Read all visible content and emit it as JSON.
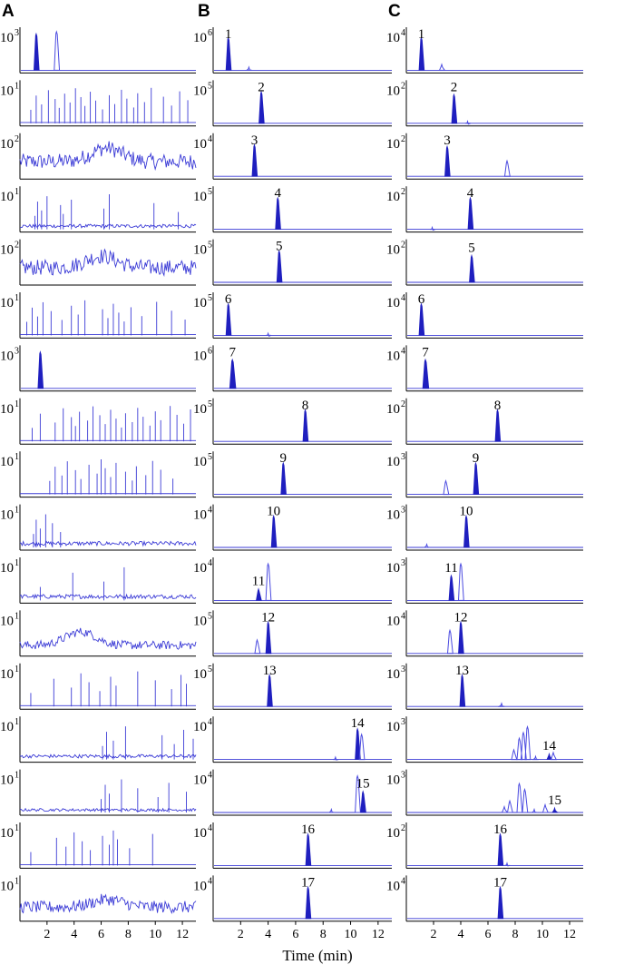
{
  "figure": {
    "panel_letters": [
      "A",
      "B",
      "C"
    ],
    "x_axis_title": "Time (min)",
    "x_ticks": [
      "2",
      "4",
      "6",
      "8",
      "10",
      "12"
    ]
  },
  "chart_data": [
    {
      "panel": "A",
      "type": "line",
      "title": "",
      "xlabel": "",
      "ylabel": "",
      "xlim": [
        0,
        13
      ],
      "x_ticks": [
        2,
        4,
        6,
        8,
        10,
        12
      ],
      "rows": [
        {
          "row": 1,
          "y_scale_exp": 3,
          "style": "peaks",
          "peaks": [
            {
              "t": 1.2,
              "h": 0.95,
              "w": 0.12,
              "filled": true
            },
            {
              "t": 2.7,
              "h": 1.0,
              "w": 0.12,
              "filled": false
            }
          ]
        },
        {
          "row": 2,
          "y_scale_exp": 1,
          "style": "spikes",
          "spikes": [
            0.8,
            1.2,
            1.6,
            2.1,
            2.6,
            2.9,
            3.3,
            3.7,
            4.1,
            4.5,
            4.8,
            5.2,
            5.6,
            6.1,
            6.6,
            7.0,
            7.5,
            7.9,
            8.4,
            8.7,
            9.2,
            9.7,
            10.6,
            11.2,
            11.8,
            12.4
          ]
        },
        {
          "row": 3,
          "y_scale_exp": 2,
          "style": "noise",
          "level": 0.45,
          "bump": {
            "t": 6.4,
            "h": 0.35
          }
        },
        {
          "row": 4,
          "y_scale_exp": 1,
          "style": "noise-spikes",
          "level": 0.1,
          "spikes": [
            1.1,
            1.3,
            1.6,
            2.0,
            3.0,
            3.2,
            3.8,
            6.2,
            6.6,
            9.9,
            11.7
          ]
        },
        {
          "row": 5,
          "y_scale_exp": 2,
          "style": "noise",
          "level": 0.45,
          "bump": {
            "t": 6.0,
            "h": 0.3
          }
        },
        {
          "row": 6,
          "y_scale_exp": 1,
          "style": "spikes",
          "spikes": [
            0.5,
            0.9,
            1.3,
            1.7,
            2.3,
            3.1,
            3.8,
            4.3,
            4.8,
            6.1,
            6.5,
            6.9,
            7.3,
            7.7,
            8.2,
            9.0,
            10.1,
            11.2,
            12.2
          ]
        },
        {
          "row": 7,
          "y_scale_exp": 3,
          "style": "peaks",
          "peaks": [
            {
              "t": 1.5,
              "h": 0.95,
              "w": 0.14,
              "filled": true
            }
          ]
        },
        {
          "row": 8,
          "y_scale_exp": 1,
          "style": "spikes",
          "spikes": [
            0.9,
            1.5,
            2.6,
            3.2,
            3.8,
            4.1,
            4.4,
            5.0,
            5.4,
            5.9,
            6.3,
            6.7,
            7.1,
            7.5,
            7.8,
            8.3,
            8.7,
            9.1,
            9.6,
            10.0,
            10.4,
            11.1,
            11.6,
            12.1,
            12.6
          ]
        },
        {
          "row": 9,
          "y_scale_exp": 1,
          "style": "spikes",
          "spikes": [
            2.2,
            2.6,
            3.1,
            3.5,
            4.1,
            4.5,
            5.1,
            5.7,
            6.0,
            6.3,
            6.7,
            7.1,
            7.8,
            8.3,
            8.6,
            9.3,
            9.8,
            10.4,
            11.3
          ]
        },
        {
          "row": 10,
          "y_scale_exp": 1,
          "style": "noise-spikes",
          "level": 0.12,
          "spikes": [
            1.0,
            1.2,
            1.5,
            1.9,
            2.4,
            3.0
          ]
        },
        {
          "row": 11,
          "y_scale_exp": 1,
          "style": "noise-spikes",
          "level": 0.12,
          "spikes": [
            1.5,
            3.9,
            6.2,
            7.7
          ]
        },
        {
          "row": 12,
          "y_scale_exp": 1,
          "style": "noise",
          "level": 0.25,
          "bump": {
            "t": 4.5,
            "h": 0.35
          }
        },
        {
          "row": 13,
          "y_scale_exp": 1,
          "style": "spikes",
          "spikes": [
            0.8,
            2.5,
            3.8,
            4.5,
            5.1,
            5.9,
            6.7,
            7.1,
            8.7,
            10.0,
            11.2,
            11.9,
            12.3
          ]
        },
        {
          "row": 14,
          "y_scale_exp": 1,
          "style": "noise-spikes",
          "level": 0.1,
          "spikes": [
            6.1,
            6.4,
            6.9,
            7.8,
            10.5,
            11.4,
            12.1,
            12.8
          ]
        },
        {
          "row": 15,
          "y_scale_exp": 1,
          "style": "noise-spikes",
          "level": 0.08,
          "spikes": [
            6.0,
            6.3,
            6.6,
            7.5,
            8.7,
            10.2,
            11.0,
            12.3
          ]
        },
        {
          "row": 16,
          "y_scale_exp": 1,
          "style": "spikes",
          "spikes": [
            0.8,
            2.7,
            3.4,
            4.0,
            4.6,
            5.2,
            6.1,
            6.6,
            6.9,
            7.2,
            8.1,
            9.8
          ]
        },
        {
          "row": 17,
          "y_scale_exp": 1,
          "style": "noise",
          "level": 0.35,
          "bump": {
            "t": 6.5,
            "h": 0.2
          }
        }
      ]
    },
    {
      "panel": "B",
      "type": "line",
      "title": "",
      "xlabel": "Time (min)",
      "ylabel": "",
      "xlim": [
        0,
        13
      ],
      "x_ticks": [
        2,
        4,
        6,
        8,
        10,
        12
      ],
      "rows": [
        {
          "row": 1,
          "label": "1",
          "y_scale_exp": 6,
          "peaks": [
            {
              "t": 1.1,
              "h": 0.85,
              "w": 0.12,
              "filled": true
            },
            {
              "t": 2.6,
              "h": 0.08,
              "w": 0.1,
              "filled": false
            }
          ]
        },
        {
          "row": 2,
          "label": "2",
          "y_scale_exp": 5,
          "peaks": [
            {
              "t": 3.5,
              "h": 0.82,
              "w": 0.06,
              "filled": true
            }
          ]
        },
        {
          "row": 3,
          "label": "3",
          "y_scale_exp": 4,
          "peaks": [
            {
              "t": 3.0,
              "h": 0.82,
              "w": 0.06,
              "filled": true
            }
          ]
        },
        {
          "row": 4,
          "label": "4",
          "y_scale_exp": 5,
          "peaks": [
            {
              "t": 4.7,
              "h": 0.82,
              "w": 0.07,
              "filled": true
            }
          ]
        },
        {
          "row": 5,
          "label": "5",
          "y_scale_exp": 5,
          "peaks": [
            {
              "t": 4.8,
              "h": 0.82,
              "w": 0.07,
              "filled": true
            }
          ]
        },
        {
          "row": 6,
          "label": "6",
          "y_scale_exp": 5,
          "peaks": [
            {
              "t": 1.1,
              "h": 0.82,
              "w": 0.08,
              "filled": true
            },
            {
              "t": 4.0,
              "h": 0.05,
              "w": 0.08,
              "filled": false
            }
          ]
        },
        {
          "row": 7,
          "label": "7",
          "y_scale_exp": 6,
          "peaks": [
            {
              "t": 1.4,
              "h": 0.75,
              "w": 0.16,
              "filled": true
            }
          ]
        },
        {
          "row": 8,
          "label": "8",
          "y_scale_exp": 5,
          "peaks": [
            {
              "t": 6.7,
              "h": 0.82,
              "w": 0.07,
              "filled": true
            }
          ]
        },
        {
          "row": 9,
          "label": "9",
          "y_scale_exp": 5,
          "peaks": [
            {
              "t": 5.1,
              "h": 0.82,
              "w": 0.07,
              "filled": true
            }
          ]
        },
        {
          "row": 10,
          "label": "10",
          "y_scale_exp": 4,
          "peaks": [
            {
              "t": 4.4,
              "h": 0.82,
              "w": 0.07,
              "filled": true
            }
          ]
        },
        {
          "row": 11,
          "label": "11",
          "y_scale_exp": 4,
          "peaks": [
            {
              "t": 3.3,
              "h": 0.3,
              "w": 0.06,
              "filled": true
            },
            {
              "t": 4.0,
              "h": 0.95,
              "w": 0.07,
              "filled": false
            }
          ]
        },
        {
          "row": 12,
          "label": "12",
          "y_scale_exp": 5,
          "peaks": [
            {
              "t": 3.2,
              "h": 0.35,
              "w": 0.06,
              "filled": false
            },
            {
              "t": 4.0,
              "h": 0.82,
              "w": 0.07,
              "filled": true
            }
          ]
        },
        {
          "row": 13,
          "label": "13",
          "y_scale_exp": 5,
          "peaks": [
            {
              "t": 4.1,
              "h": 0.82,
              "w": 0.07,
              "filled": true
            }
          ]
        },
        {
          "row": 14,
          "label": "14",
          "y_scale_exp": 4,
          "peaks": [
            {
              "t": 8.9,
              "h": 0.06,
              "w": 0.1,
              "filled": false
            },
            {
              "t": 10.5,
              "h": 0.8,
              "w": 0.1,
              "filled": true
            },
            {
              "t": 10.8,
              "h": 0.65,
              "w": 0.1,
              "filled": false
            }
          ]
        },
        {
          "row": 15,
          "label": "15",
          "y_scale_exp": 4,
          "peaks": [
            {
              "t": 8.6,
              "h": 0.08,
              "w": 0.1,
              "filled": false
            },
            {
              "t": 10.5,
              "h": 0.95,
              "w": 0.1,
              "filled": false
            },
            {
              "t": 10.9,
              "h": 0.55,
              "w": 0.1,
              "filled": true
            }
          ]
        },
        {
          "row": 16,
          "label": "16",
          "y_scale_exp": 4,
          "peaks": [
            {
              "t": 6.9,
              "h": 0.82,
              "w": 0.07,
              "filled": true
            }
          ]
        },
        {
          "row": 17,
          "label": "17",
          "y_scale_exp": 4,
          "peaks": [
            {
              "t": 6.9,
              "h": 0.82,
              "w": 0.07,
              "filled": true
            }
          ]
        }
      ]
    },
    {
      "panel": "C",
      "type": "line",
      "title": "",
      "xlabel": "",
      "ylabel": "",
      "xlim": [
        0,
        13
      ],
      "x_ticks": [
        2,
        4,
        6,
        8,
        10,
        12
      ],
      "rows": [
        {
          "row": 1,
          "label": "1",
          "y_scale_exp": 4,
          "peaks": [
            {
              "t": 1.1,
              "h": 0.85,
              "w": 0.12,
              "filled": true
            },
            {
              "t": 2.6,
              "h": 0.15,
              "w": 0.12,
              "filled": false
            }
          ]
        },
        {
          "row": 2,
          "label": "2",
          "y_scale_exp": 2,
          "peaks": [
            {
              "t": 3.5,
              "h": 0.75,
              "w": 0.07,
              "filled": true
            },
            {
              "t": 4.5,
              "h": 0.05,
              "w": 0.1,
              "filled": false
            }
          ]
        },
        {
          "row": 3,
          "label": "3",
          "y_scale_exp": 2,
          "peaks": [
            {
              "t": 3.0,
              "h": 0.78,
              "w": 0.07,
              "filled": true
            },
            {
              "t": 7.4,
              "h": 0.4,
              "w": 0.05,
              "filled": false
            }
          ]
        },
        {
          "row": 4,
          "label": "4",
          "y_scale_exp": 2,
          "peaks": [
            {
              "t": 4.7,
              "h": 0.82,
              "w": 0.07,
              "filled": true
            },
            {
              "t": 1.9,
              "h": 0.05,
              "w": 0.1,
              "filled": false
            }
          ]
        },
        {
          "row": 5,
          "label": "5",
          "y_scale_exp": 2,
          "peaks": [
            {
              "t": 4.8,
              "h": 0.7,
              "w": 0.07,
              "filled": true
            }
          ]
        },
        {
          "row": 6,
          "label": "6",
          "y_scale_exp": 4,
          "peaks": [
            {
              "t": 1.1,
              "h": 0.82,
              "w": 0.08,
              "filled": true
            }
          ]
        },
        {
          "row": 7,
          "label": "7",
          "y_scale_exp": 4,
          "peaks": [
            {
              "t": 1.4,
              "h": 0.75,
              "w": 0.16,
              "filled": true
            }
          ]
        },
        {
          "row": 8,
          "label": "8",
          "y_scale_exp": 2,
          "peaks": [
            {
              "t": 6.7,
              "h": 0.82,
              "w": 0.07,
              "filled": true
            }
          ]
        },
        {
          "row": 9,
          "label": "9",
          "y_scale_exp": 3,
          "peaks": [
            {
              "t": 2.9,
              "h": 0.35,
              "w": 0.06,
              "filled": false
            },
            {
              "t": 5.1,
              "h": 0.82,
              "w": 0.07,
              "filled": true
            }
          ]
        },
        {
          "row": 10,
          "label": "10",
          "y_scale_exp": 3,
          "peaks": [
            {
              "t": 1.5,
              "h": 0.08,
              "w": 0.15,
              "filled": false
            },
            {
              "t": 4.4,
              "h": 0.82,
              "w": 0.07,
              "filled": true
            }
          ]
        },
        {
          "row": 11,
          "label": "11",
          "y_scale_exp": 3,
          "peaks": [
            {
              "t": 3.3,
              "h": 0.65,
              "w": 0.06,
              "filled": true
            },
            {
              "t": 4.0,
              "h": 0.95,
              "w": 0.07,
              "filled": false
            }
          ]
        },
        {
          "row": 12,
          "label": "12",
          "y_scale_exp": 4,
          "peaks": [
            {
              "t": 3.2,
              "h": 0.6,
              "w": 0.06,
              "filled": false
            },
            {
              "t": 4.0,
              "h": 0.82,
              "w": 0.07,
              "filled": true
            }
          ]
        },
        {
          "row": 13,
          "label": "13",
          "y_scale_exp": 3,
          "peaks": [
            {
              "t": 4.1,
              "h": 0.82,
              "w": 0.07,
              "filled": true
            },
            {
              "t": 7.0,
              "h": 0.08,
              "w": 0.1,
              "filled": false
            }
          ]
        },
        {
          "row": 14,
          "label": "14",
          "y_scale_exp": 3,
          "peaks": [
            {
              "t": 7.9,
              "h": 0.25,
              "w": 0.08,
              "filled": false
            },
            {
              "t": 8.3,
              "h": 0.55,
              "w": 0.08,
              "filled": false
            },
            {
              "t": 8.6,
              "h": 0.7,
              "w": 0.08,
              "filled": false
            },
            {
              "t": 8.9,
              "h": 0.85,
              "w": 0.08,
              "filled": false
            },
            {
              "t": 9.5,
              "h": 0.08,
              "w": 0.1,
              "filled": false
            },
            {
              "t": 10.5,
              "h": 0.15,
              "w": 0.08,
              "filled": true
            },
            {
              "t": 10.8,
              "h": 0.18,
              "w": 0.08,
              "filled": false
            }
          ]
        },
        {
          "row": 15,
          "label": "15",
          "y_scale_exp": 3,
          "peaks": [
            {
              "t": 7.2,
              "h": 0.15,
              "w": 0.08,
              "filled": false
            },
            {
              "t": 7.6,
              "h": 0.3,
              "w": 0.08,
              "filled": false
            },
            {
              "t": 8.3,
              "h": 0.75,
              "w": 0.08,
              "filled": false
            },
            {
              "t": 8.7,
              "h": 0.6,
              "w": 0.08,
              "filled": false
            },
            {
              "t": 9.4,
              "h": 0.08,
              "w": 0.1,
              "filled": false
            },
            {
              "t": 10.2,
              "h": 0.2,
              "w": 0.08,
              "filled": false
            },
            {
              "t": 10.9,
              "h": 0.12,
              "w": 0.08,
              "filled": true
            }
          ]
        },
        {
          "row": 16,
          "label": "16",
          "y_scale_exp": 2,
          "peaks": [
            {
              "t": 6.9,
              "h": 0.82,
              "w": 0.07,
              "filled": true
            },
            {
              "t": 7.4,
              "h": 0.06,
              "w": 0.06,
              "filled": false
            }
          ]
        },
        {
          "row": 17,
          "label": "17",
          "y_scale_exp": 4,
          "peaks": [
            {
              "t": 6.9,
              "h": 0.82,
              "w": 0.07,
              "filled": true
            }
          ]
        }
      ]
    }
  ]
}
